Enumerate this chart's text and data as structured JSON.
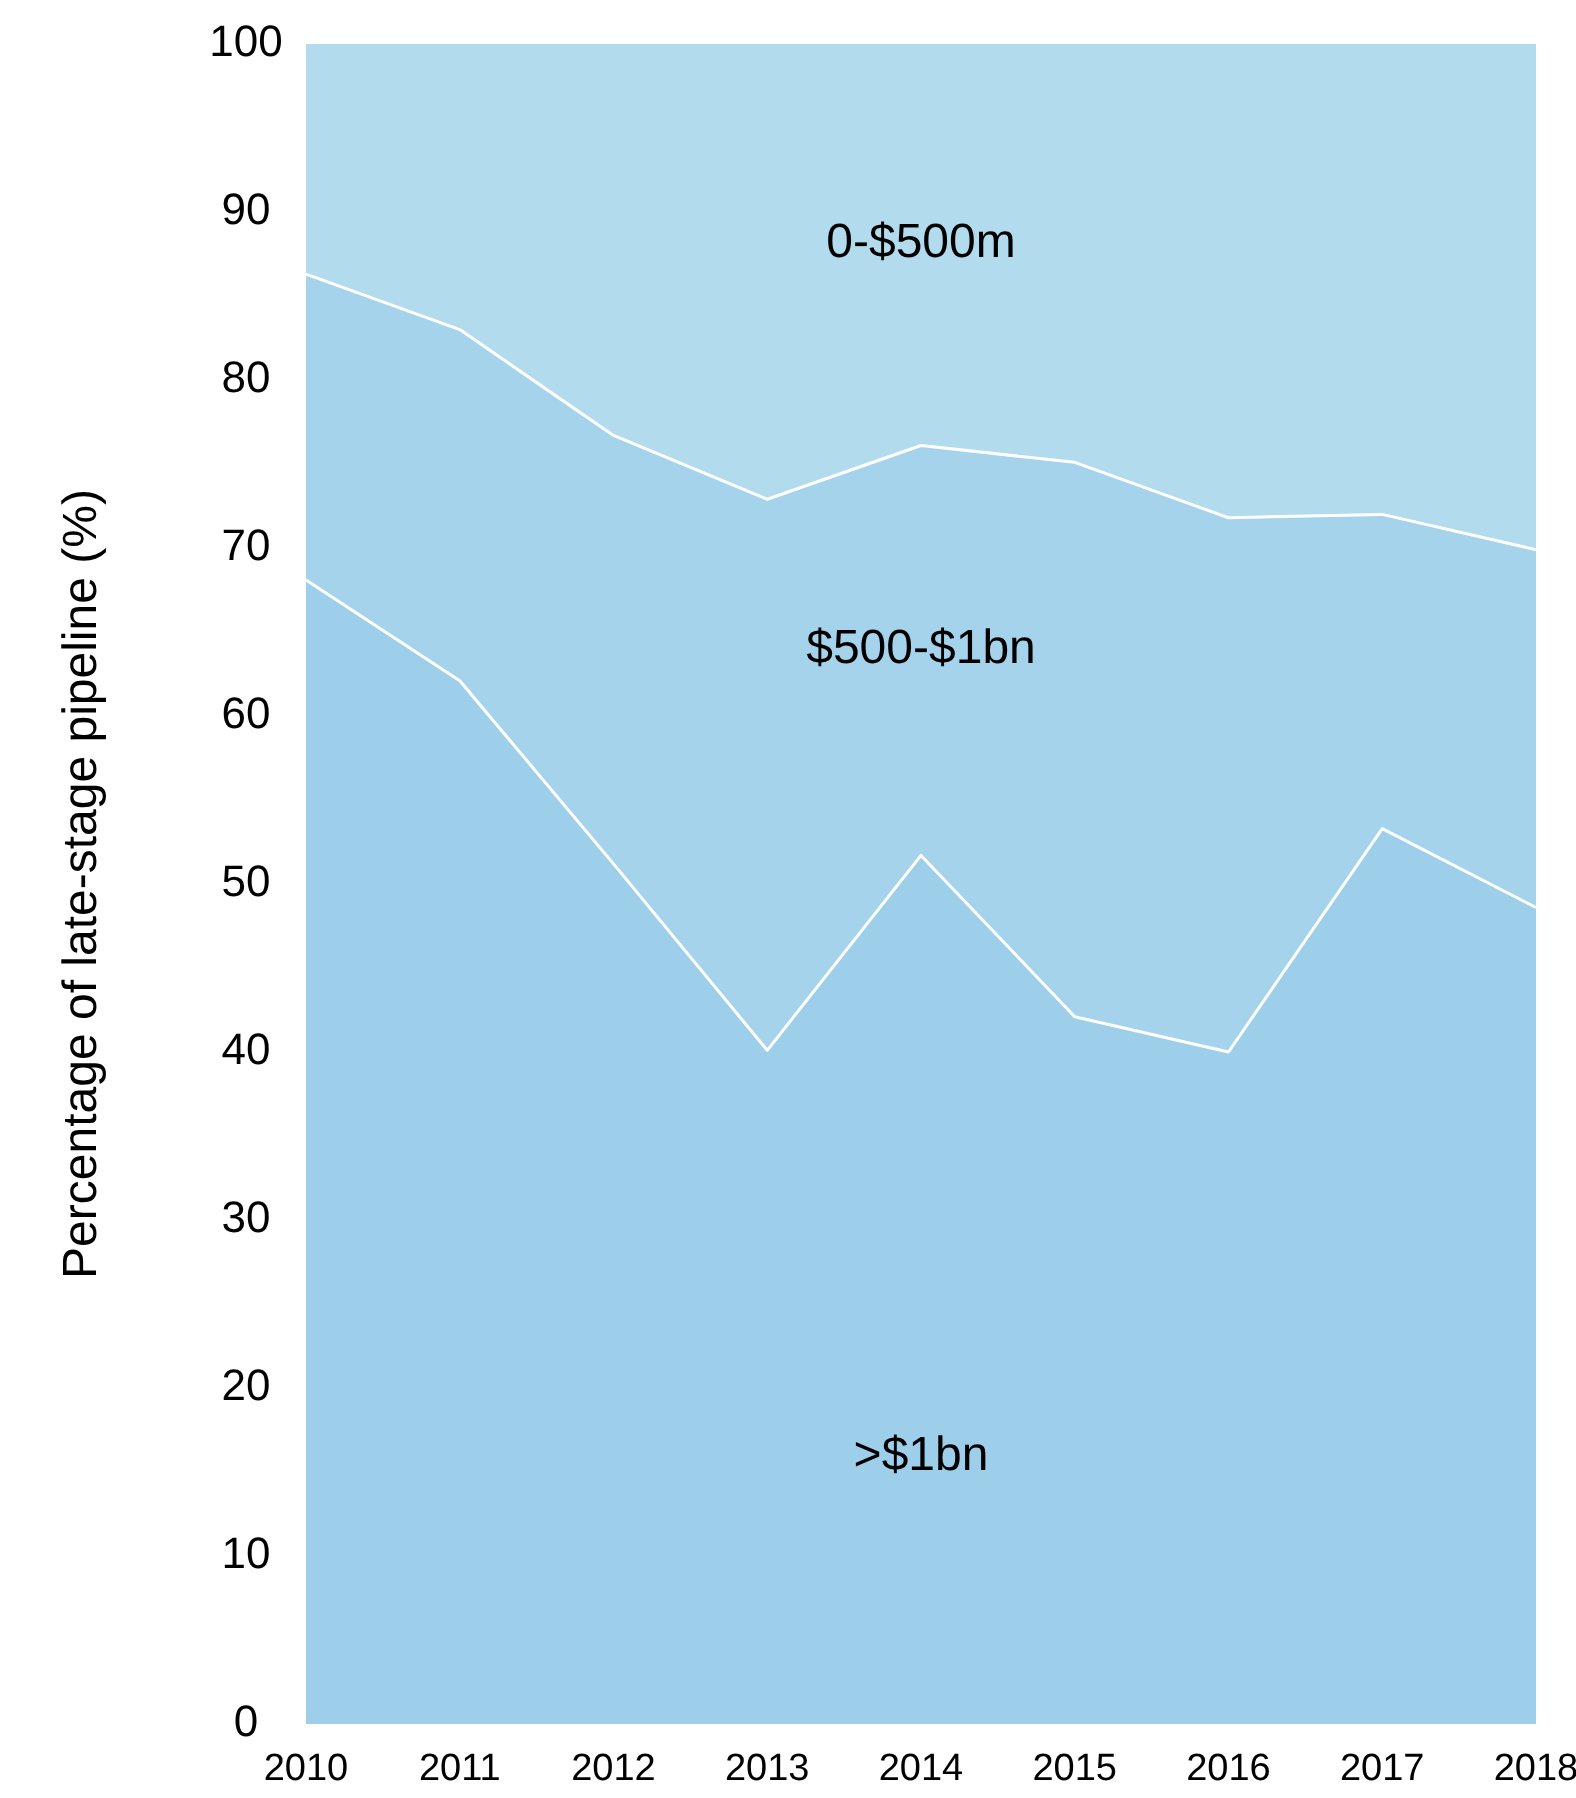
{
  "chart_data": {
    "type": "area",
    "stacked": true,
    "ylabel": "Percentage of late-stage pipeline (%)",
    "categories": [
      "2010",
      "2011",
      "2012",
      "2013",
      "2014",
      "2015",
      "2016",
      "2017",
      "2018"
    ],
    "series": [
      {
        "name": ">$1bn",
        "color": "#9ecfea",
        "values": [
          68.1,
          62.1,
          51.2,
          40.1,
          51.7,
          42.1,
          40.0,
          53.3,
          48.6
        ]
      },
      {
        "name": "$500-$1bn",
        "color": "#a6d3ec",
        "values": [
          18.2,
          20.9,
          25.5,
          32.8,
          24.4,
          33.0,
          31.8,
          18.7,
          21.3
        ]
      },
      {
        "name": "0-$500m",
        "color": "#b3dbee",
        "values": [
          13.7,
          17.0,
          23.3,
          27.1,
          23.9,
          24.9,
          28.2,
          28.0,
          30.1
        ]
      }
    ],
    "ylim": [
      0,
      100
    ],
    "yticks": [
      0,
      10,
      20,
      30,
      40,
      50,
      60,
      70,
      80,
      90,
      100
    ],
    "grid": false,
    "legend": false
  }
}
